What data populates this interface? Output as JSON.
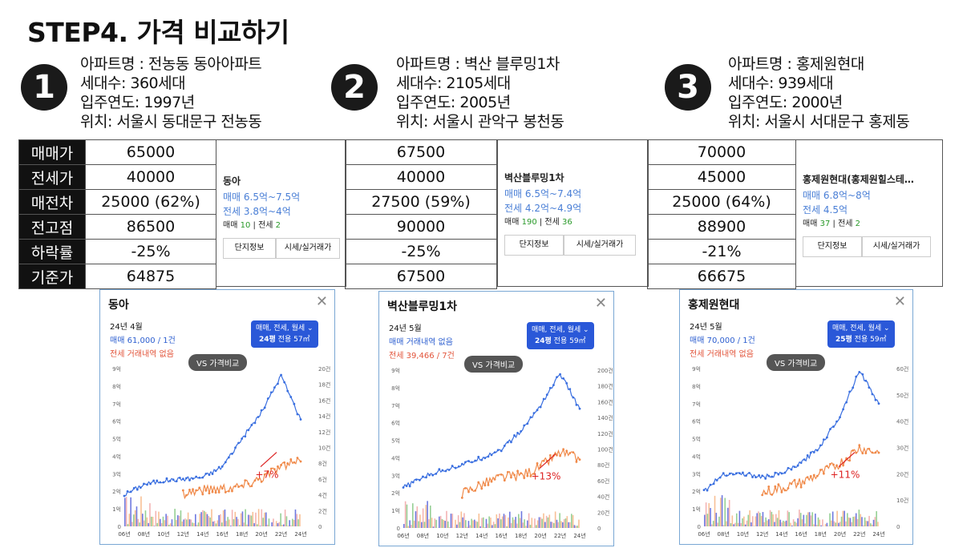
{
  "page": {
    "title": "STEP4. 가격 비교하기"
  },
  "apartments": [
    {
      "num": "1",
      "name": "아파트명 : 전농동 동아아파트",
      "units": "세대수: 360세대",
      "year": "입주연도: 1997년",
      "loc": "위치: 서울시 동대문구 전농동"
    },
    {
      "num": "2",
      "name": "아파트명 : 벽산 블루밍1차",
      "units": "세대수: 2105세대",
      "year": "입주연도: 2005년",
      "loc": "위치: 서울시 관악구 봉천동"
    },
    {
      "num": "3",
      "name": "아파트명 : 홍제원현대",
      "units": "세대수: 939세대",
      "year": "입주연도: 2000년",
      "loc": "위치: 서울시 서대문구 홍제동"
    }
  ],
  "table": {
    "labels": [
      "매매가",
      "전세가",
      "매전차",
      "전고점",
      "하락률",
      "기준가"
    ],
    "col1": [
      "65000",
      "40000",
      "25000 (62%)",
      "86500",
      "-25%",
      "64875"
    ],
    "col2": [
      "67500",
      "40000",
      "27500 (59%)",
      "90000",
      "-25%",
      "67500"
    ],
    "col3": [
      "70000",
      "45000",
      "25000 (64%)",
      "88900",
      "-21%",
      "66675"
    ]
  },
  "cards": [
    {
      "name": "동아",
      "sale": "매매 6.5억~7.5억",
      "rent": "전세 3.8억~4억",
      "count_sale_label": "매매",
      "count_sale": "10",
      "count_rent_label": "전세",
      "count_rent": "2",
      "btn1": "단지정보",
      "btn2": "시세/실거래가"
    },
    {
      "name": "벽산블루밍1차",
      "sale": "매매 6.5억~7.4억",
      "rent": "전세 4.2억~4.9억",
      "count_sale_label": "매매",
      "count_sale": "190",
      "count_rent_label": "전세",
      "count_rent": "36",
      "btn1": "단지정보",
      "btn2": "시세/실거래가"
    },
    {
      "name": "홍제원현대(홍제원힐스테…",
      "sale": "매매 6.8억~8억",
      "rent": "전세 4.5억",
      "count_sale_label": "매매",
      "count_sale": "37",
      "count_rent_label": "전세",
      "count_rent": "2",
      "btn1": "단지정보",
      "btn2": "시세/실거래가"
    }
  ],
  "panels": [
    {
      "title": "동아",
      "date": "24년 4월",
      "sale": "매매 61,000 / 1건",
      "rent": "전세 거래내역 없음",
      "filter": "매매, 전세, 월세 ⌄",
      "size": "24평",
      "size_sub": "전용 57㎡",
      "vs": "VS 가격비교",
      "pct": "+7%"
    },
    {
      "title": "벽산블루밍1차",
      "date": "24년 5월",
      "sale": "매매 거래내역 없음",
      "rent": "전세 39,466 / 7건",
      "filter": "매매, 전세, 월세 ⌄",
      "size": "24평",
      "size_sub": "전용 59㎡",
      "vs": "VS 가격비교",
      "pct": "+13%"
    },
    {
      "title": "홍제원현대",
      "date": "24년 5월",
      "sale": "매매 70,000 / 1건",
      "rent": "전세 거래내역 없음",
      "filter": "매매, 전세, 월세 ⌄",
      "size": "25평",
      "size_sub": "전용 59㎡",
      "vs": "VS 가격비교",
      "pct": "+11%"
    }
  ],
  "chart_data": [
    {
      "type": "line",
      "title": "동아",
      "x": [
        "06년",
        "08년",
        "10년",
        "12년",
        "14년",
        "16년",
        "18년",
        "20년",
        "22년",
        "24년"
      ],
      "left_ticks": [
        "0",
        "1억",
        "2억",
        "3억",
        "4억",
        "5억",
        "6억",
        "7억",
        "8억",
        "9억"
      ],
      "right_ticks": [
        "0",
        "2건",
        "4건",
        "6건",
        "8건",
        "10건",
        "12건",
        "14건",
        "16건",
        "18건",
        "20건"
      ],
      "series": [
        {
          "values": [
            1.8,
            2.4,
            2.6,
            2.7,
            2.8,
            3.4,
            5.0,
            6.5,
            8.6,
            6.1
          ]
        },
        {
          "values": [
            null,
            null,
            null,
            1.9,
            2.1,
            2.2,
            2.3,
            2.8,
            3.4,
            3.7
          ]
        }
      ]
    },
    {
      "type": "line",
      "title": "벽산블루밍1차",
      "x": [
        "06년",
        "08년",
        "10년",
        "12년",
        "14년",
        "16년",
        "18년",
        "20년",
        "22년",
        "24년"
      ],
      "left_ticks": [
        "0",
        "1억",
        "2억",
        "3억",
        "4억",
        "5억",
        "6억",
        "7억",
        "8억",
        "9억"
      ],
      "right_ticks": [
        "0",
        "20건",
        "40건",
        "60건",
        "80건",
        "100건",
        "120건",
        "140건",
        "160건",
        "180건",
        "200건"
      ],
      "series": [
        {
          "values": [
            2.3,
            2.9,
            3.3,
            3.6,
            4.0,
            4.5,
            5.5,
            7.0,
            8.8,
            6.8
          ]
        },
        {
          "values": [
            null,
            null,
            null,
            2.0,
            2.5,
            2.9,
            3.0,
            3.5,
            4.3,
            3.9
          ]
        }
      ]
    },
    {
      "type": "line",
      "title": "홍제원현대",
      "x": [
        "06년",
        "08년",
        "10년",
        "12년",
        "14년",
        "16년",
        "18년",
        "20년",
        "22년",
        "24년"
      ],
      "left_ticks": [
        "0",
        "1억",
        "2억",
        "3억",
        "4억",
        "5억",
        "6억",
        "7억",
        "8억",
        "9억"
      ],
      "right_ticks": [
        "0",
        "10건",
        "20건",
        "30건",
        "40건",
        "50건",
        "60건"
      ],
      "series": [
        {
          "values": [
            2.0,
            3.0,
            3.0,
            2.8,
            3.0,
            3.6,
            4.6,
            6.3,
            8.9,
            7.0
          ]
        },
        {
          "values": [
            null,
            null,
            null,
            1.9,
            2.2,
            2.5,
            3.0,
            3.6,
            4.5,
            4.2
          ]
        }
      ]
    }
  ]
}
